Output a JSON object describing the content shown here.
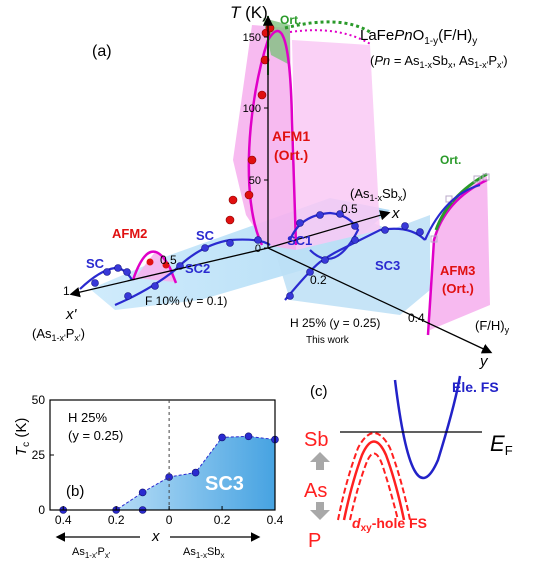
{
  "colors": {
    "sc_blue": "#2a2ad0",
    "sc_fill": "#a9d8f5",
    "afm_magenta": "#e000c8",
    "afm_fill": "#f6b3ee",
    "ort_green": "#2a9a2a",
    "red_label": "#e01010",
    "red_hole": "#ff2020",
    "ele_blue": "#2222c8",
    "grey_arrow": "#a8a8a8"
  },
  "panel_a": {
    "label": "(a)",
    "title_compound": "LaFePnO1-y(F/H)y",
    "title_compound_parts": [
      "LaFe",
      "Pn",
      "O",
      "1-y",
      "(F/H)",
      "y"
    ],
    "title_substitution_parts": [
      "(",
      "Pn",
      " = As",
      "1-x",
      "Sb",
      "x",
      ", As",
      "1-x'",
      "P",
      "x'",
      ")"
    ],
    "axis_T_label": "T (K)",
    "axis_T_parts": [
      "T",
      " (K)"
    ],
    "t_ticks": [
      "0",
      "50",
      "100",
      "150"
    ],
    "x_axis_label": "x",
    "x_axis_sublabel_parts": [
      "(As",
      "1-x",
      "Sb",
      "x",
      ")"
    ],
    "x_ticks": [
      "0.5"
    ],
    "xprime_axis_label": "x'",
    "xprime_sublabel_parts": [
      "(As",
      "1-x'",
      "P",
      "x'",
      ")"
    ],
    "xprime_ticks": [
      "1",
      "0.5"
    ],
    "y_axis_label": "y",
    "y_axis_sublabel_parts": [
      "(F/H)",
      "y"
    ],
    "y_ticks": [
      "0.2",
      "0.4"
    ],
    "region_labels": {
      "ort_top": "Ort.",
      "afm1_line1": "AFM1",
      "afm1_line2": "(Ort.)",
      "afm2": "AFM2",
      "sc_left_1": "SC",
      "sc_left_2": "SC",
      "sc1": "SC1",
      "sc2": "SC2",
      "sc3": "SC3",
      "afm3_line1": "AFM3",
      "afm3_line2": "(Ort.)",
      "ort_right": "Ort."
    },
    "series_labels": {
      "f10": "F 10% (y = 0.1)",
      "h25": "H 25% (y = 0.25)",
      "this_work": "This work"
    }
  },
  "chart_data": [
    {
      "type": "area",
      "panel": "(b)",
      "title": "",
      "xlabel": "x",
      "ylabel": "Tc (K)",
      "xlim": [
        -0.45,
        0.4
      ],
      "ylim": [
        0,
        50
      ],
      "x_ticks": [
        -0.4,
        -0.2,
        0,
        0.2,
        0.4
      ],
      "x_tick_labels": [
        "0.4",
        "0.2",
        "0",
        "0.2",
        "0.4"
      ],
      "y_ticks": [
        0,
        25,
        50
      ],
      "y_tick_labels": [
        "0",
        "25",
        "50"
      ],
      "grid": false,
      "dashed_vline_at": 0,
      "annotation_line1": "H 25%",
      "annotation_line2": "(y = 0.25)",
      "region_label": "SC3",
      "left_axis_label_parts": [
        "As",
        "1-x'",
        "P",
        "x'"
      ],
      "right_axis_label_parts": [
        "As",
        "1-x",
        "Sb",
        "x"
      ],
      "series": [
        {
          "x": [
            -0.4,
            -0.2,
            -0.1,
            0.0,
            0.1,
            0.2,
            0.3,
            0.4
          ],
          "y": [
            0,
            0,
            8,
            15,
            17,
            33,
            33.5,
            32
          ]
        }
      ],
      "extra_points": {
        "x": [
          -0.1
        ],
        "y": [
          0
        ]
      }
    }
  ],
  "panel_b": {
    "label": "(b)",
    "ylabel_main": "T",
    "ylabel_sub": "c",
    "ylabel_unit": " (K)"
  },
  "panel_c": {
    "label": "(c)",
    "element_sb": "Sb",
    "element_as": "As",
    "element_p": "P",
    "fermi_label_main": "E",
    "fermi_label_sub": "F",
    "electron_fs_label": "Ele. FS",
    "hole_fs_label_main": "d",
    "hole_fs_label_sub": "xy",
    "hole_fs_label_rest": "-hole FS"
  }
}
